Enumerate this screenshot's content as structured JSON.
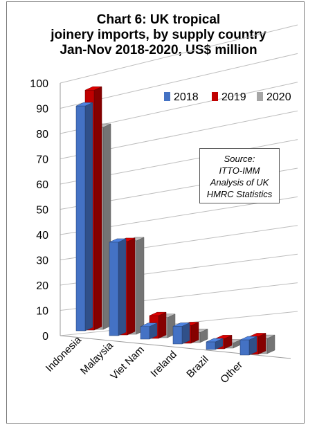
{
  "chart_data": {
    "type": "bar",
    "title_lines": [
      "Chart 6: UK tropical",
      "joinery imports, by supply country",
      "Jan-Nov 2018-2020, US$ million"
    ],
    "categories": [
      "Indonesia",
      "Malaysia",
      "Viet Nam",
      "Ireland",
      "Brazil",
      "Other"
    ],
    "series": [
      {
        "name": "2018",
        "color": "#4472c4",
        "values": [
          89,
          37,
          5,
          7,
          3,
          6
        ]
      },
      {
        "name": "2019",
        "color": "#c00000",
        "values": [
          95,
          37,
          9,
          7,
          4,
          7
        ]
      },
      {
        "name": "2020",
        "color": "#a6a6a6",
        "values": [
          80,
          37,
          8,
          4,
          2,
          6
        ]
      }
    ],
    "y_ticks": [
      0,
      10,
      20,
      30,
      40,
      50,
      60,
      70,
      80,
      90,
      100
    ],
    "ylim": [
      0,
      100
    ],
    "grid": true,
    "legend_position": "top-right",
    "source_lines": [
      "Source:",
      "ITTO-IMM",
      "Analysis of UK",
      "HMRC Statistics"
    ]
  }
}
